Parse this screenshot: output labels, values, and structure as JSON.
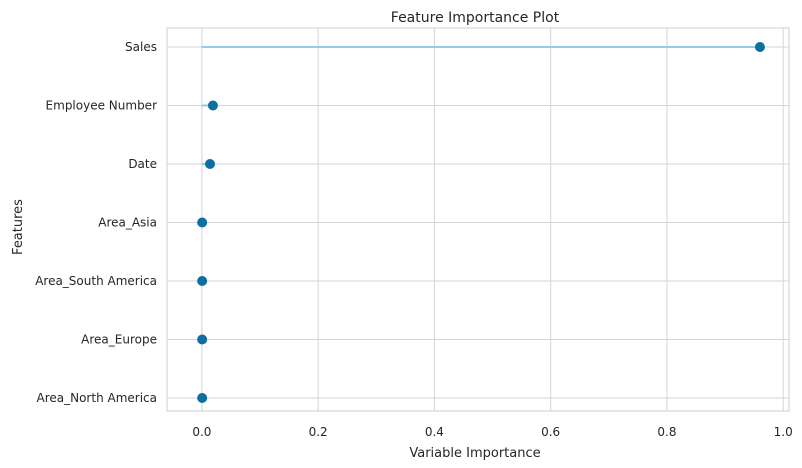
{
  "chart_data": {
    "type": "lollipop",
    "title": "Feature Importance Plot",
    "xlabel": "Variable Importance",
    "ylabel": "Features",
    "categories": [
      "Sales",
      "Employee Number",
      "Date",
      "Area_Asia",
      "Area_South America",
      "Area_Europe",
      "Area_North America"
    ],
    "values": [
      0.96,
      0.019,
      0.014,
      0.0005,
      0.0005,
      0.0005,
      0.0005
    ],
    "xlim": [
      -0.06,
      1.01
    ],
    "xticks": [
      0.0,
      0.2,
      0.4,
      0.6,
      0.8,
      1.0
    ],
    "xtick_labels": [
      "0.0",
      "0.2",
      "0.4",
      "0.6",
      "0.8",
      "1.0"
    ],
    "grid": true,
    "colors": {
      "stem": "#8ecfe3",
      "marker": "#0f6ea1",
      "grid": "#d4d4d8",
      "frame": "#cfcfcf",
      "text": "#262626"
    }
  }
}
